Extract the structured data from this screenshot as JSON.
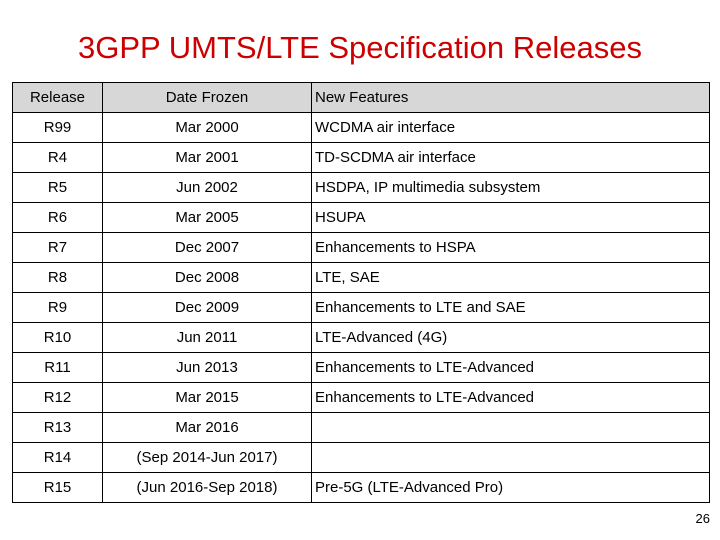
{
  "title": "3GPP UMTS/LTE Specification Releases",
  "table": {
    "headers": [
      "Release",
      "Date Frozen",
      "New Features"
    ],
    "rows": [
      [
        "R99",
        "Mar 2000",
        "WCDMA air interface"
      ],
      [
        "R4",
        "Mar 2001",
        "TD-SCDMA air interface"
      ],
      [
        "R5",
        "Jun 2002",
        "HSDPA, IP multimedia subsystem"
      ],
      [
        "R6",
        "Mar 2005",
        "HSUPA"
      ],
      [
        "R7",
        "Dec 2007",
        "Enhancements to HSPA"
      ],
      [
        "R8",
        "Dec 2008",
        "LTE, SAE"
      ],
      [
        "R9",
        "Dec 2009",
        "Enhancements to LTE and SAE"
      ],
      [
        "R10",
        "Jun 2011",
        "LTE-Advanced (4G)"
      ],
      [
        "R11",
        "Jun 2013",
        "Enhancements to LTE-Advanced"
      ],
      [
        "R12",
        "Mar 2015",
        "Enhancements to LTE-Advanced"
      ],
      [
        "R13",
        "Mar 2016",
        ""
      ],
      [
        "R14",
        "(Sep 2014-Jun 2017)",
        ""
      ],
      [
        "R15",
        "(Jun 2016-Sep 2018)",
        "Pre-5G (LTE-Advanced Pro)"
      ]
    ]
  },
  "page_number": "26",
  "colors": {
    "title": "#cc0000",
    "header_bg": "#d7d7d7"
  }
}
